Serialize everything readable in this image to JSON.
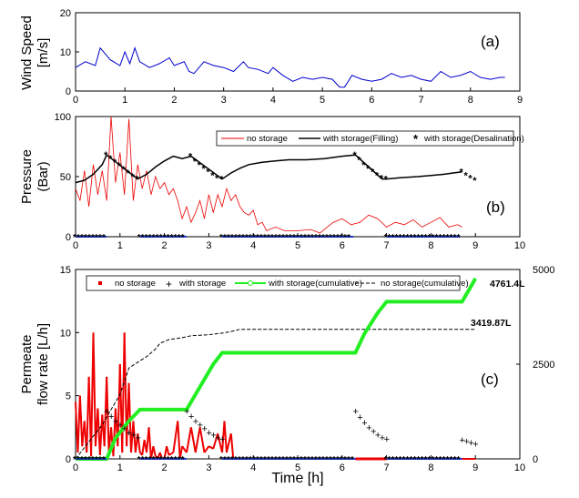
{
  "figure": {
    "xlabel": "Time [h]",
    "colors": {
      "wind": "#0000cc",
      "no_storage": "#ee0000",
      "filling": "#000000",
      "desal_marker": "#1f3ad6",
      "cumulative_storage": "#22ee22",
      "cumulative_no_storage": "#000000"
    }
  },
  "chart_data": [
    {
      "type": "line",
      "panel_label": "(a)",
      "ylabel_lines": [
        "Wind Speed",
        "[m/s]"
      ],
      "xlim": [
        0,
        9
      ],
      "ylim": [
        0,
        20
      ],
      "x_ticks": [
        "0",
        "1",
        "2",
        "3",
        "4",
        "5",
        "6",
        "7",
        "8",
        "9"
      ],
      "y_ticks": [
        "0",
        "10",
        "20"
      ],
      "series": [
        {
          "x": [
            0,
            0.2,
            0.4,
            0.5,
            0.7,
            0.9,
            1.0,
            1.1,
            1.2,
            1.3,
            1.5,
            1.7,
            1.9,
            2.0,
            2.2,
            2.3,
            2.4,
            2.6,
            2.8,
            3.0,
            3.2,
            3.4,
            3.5,
            3.7,
            3.9,
            4.0,
            4.2,
            4.4,
            4.6,
            4.8,
            5.0,
            5.2,
            5.35,
            5.45,
            5.6,
            5.8,
            6.0,
            6.2,
            6.4,
            6.6,
            6.8,
            7.0,
            7.2,
            7.4,
            7.6,
            7.8,
            8.0,
            8.2,
            8.4,
            8.6,
            8.7
          ],
          "values": [
            6.0,
            7.5,
            6.5,
            11.0,
            8.0,
            6.5,
            10.0,
            7.0,
            11.0,
            7.5,
            6.0,
            7.0,
            8.5,
            6.5,
            7.5,
            5.0,
            4.5,
            7.5,
            6.5,
            6.0,
            5.0,
            7.5,
            6.0,
            5.5,
            4.5,
            6.0,
            4.0,
            2.5,
            3.5,
            3.0,
            3.5,
            3.0,
            1.0,
            1.0,
            4.0,
            3.0,
            2.5,
            3.0,
            4.5,
            3.5,
            4.0,
            3.0,
            2.5,
            5.0,
            3.5,
            4.0,
            5.0,
            3.5,
            3.0,
            3.5,
            3.5
          ]
        }
      ]
    },
    {
      "type": "line",
      "panel_label": "(b)",
      "ylabel_lines": [
        "Pressure",
        "(Bar)"
      ],
      "xlim": [
        0,
        10
      ],
      "ylim": [
        0,
        100
      ],
      "x_ticks": [
        "0",
        "1",
        "2",
        "3",
        "4",
        "5",
        "6",
        "7",
        "8",
        "9",
        "10"
      ],
      "y_ticks": [
        "0",
        "50",
        "100"
      ],
      "legend": [
        "no storage",
        "with storage(Filling)",
        "with storage(Desalination)"
      ],
      "series": [
        {
          "name": "no storage",
          "x": [
            0.0,
            0.1,
            0.2,
            0.3,
            0.4,
            0.5,
            0.6,
            0.7,
            0.8,
            0.9,
            1.0,
            1.1,
            1.2,
            1.3,
            1.4,
            1.5,
            1.6,
            1.7,
            1.8,
            1.9,
            2.0,
            2.1,
            2.2,
            2.3,
            2.4,
            2.5,
            2.6,
            2.7,
            2.8,
            2.9,
            3.0,
            3.1,
            3.2,
            3.3,
            3.4,
            3.5,
            3.6,
            3.7,
            3.8,
            3.9,
            4.0,
            4.1,
            4.2,
            4.3,
            4.5,
            4.7,
            5.0,
            5.3,
            5.5,
            5.8,
            6.0,
            6.2,
            6.4,
            6.6,
            6.8,
            7.0,
            7.2,
            7.4,
            7.6,
            7.8,
            8.0,
            8.2,
            8.4,
            8.6,
            8.7
          ],
          "values": [
            40,
            30,
            55,
            25,
            60,
            35,
            55,
            30,
            100,
            45,
            70,
            35,
            98,
            30,
            60,
            40,
            55,
            35,
            50,
            40,
            45,
            35,
            40,
            30,
            15,
            25,
            12,
            20,
            30,
            15,
            35,
            20,
            35,
            25,
            40,
            30,
            35,
            25,
            20,
            18,
            22,
            10,
            12,
            5,
            8,
            5,
            5,
            6,
            3,
            12,
            15,
            10,
            12,
            18,
            15,
            8,
            12,
            10,
            14,
            8,
            12,
            16,
            8,
            10,
            8
          ]
        },
        {
          "name": "with storage(Filling)",
          "x": [
            0.0,
            0.2,
            0.4,
            0.6,
            0.7,
            1.4,
            1.6,
            1.8,
            2.0,
            2.2,
            2.4,
            2.6,
            3.3,
            3.5,
            3.7,
            3.9,
            4.2,
            4.5,
            4.8,
            5.2,
            5.6,
            6.0,
            6.3,
            6.9,
            7.0,
            7.3,
            7.7,
            8.0,
            8.3,
            8.5,
            8.7
          ],
          "values": [
            45,
            47,
            52,
            60,
            68,
            48,
            52,
            58,
            63,
            67,
            65,
            67,
            48,
            53,
            57,
            60,
            62,
            63,
            64,
            64,
            65,
            67,
            68,
            48,
            48,
            49,
            50,
            51,
            52,
            53,
            54
          ]
        },
        {
          "name": "with storage(Desalination)",
          "x": [
            0.7,
            0.8,
            0.9,
            1.0,
            1.1,
            1.2,
            1.3,
            1.4,
            2.6,
            2.7,
            2.8,
            2.9,
            3.0,
            3.1,
            3.2,
            3.3,
            6.3,
            6.4,
            6.5,
            6.6,
            6.7,
            6.8,
            6.9,
            7.0,
            8.7,
            8.8,
            8.9,
            9.0
          ],
          "values": [
            68,
            65,
            62,
            59,
            56,
            53,
            50,
            48,
            67,
            63,
            60,
            57,
            54,
            51,
            49,
            48,
            68,
            64,
            60,
            57,
            54,
            51,
            49,
            48,
            54,
            51,
            49,
            47
          ]
        }
      ],
      "zero_markers_storage": [
        [
          0.0,
          0.7
        ],
        [
          1.45,
          2.5
        ],
        [
          3.3,
          6.25
        ],
        [
          7.0,
          8.65
        ]
      ]
    },
    {
      "type": "line",
      "panel_label": "(c)",
      "ylabel_lines": [
        "Permeate",
        "flow rate [L/h]"
      ],
      "xlim": [
        0,
        10
      ],
      "ylim": [
        0,
        15
      ],
      "ylim_right": [
        0,
        5000
      ],
      "x_ticks": [
        "0",
        "1",
        "2",
        "3",
        "4",
        "5",
        "6",
        "7",
        "8",
        "9",
        "10"
      ],
      "y_ticks": [
        "0",
        "5",
        "10",
        "15"
      ],
      "y_ticks_right": [
        "0",
        "2500",
        "5000"
      ],
      "legend": [
        "no storage",
        "with storage",
        "with storage(cumulative)",
        "no storage(cumulative)"
      ],
      "annotations": [
        "4761.4L",
        "3419.87L"
      ],
      "series": [
        {
          "name": "no storage",
          "x": [
            0.0,
            0.05,
            0.1,
            0.15,
            0.2,
            0.25,
            0.3,
            0.35,
            0.4,
            0.45,
            0.5,
            0.55,
            0.6,
            0.65,
            0.7,
            0.75,
            0.8,
            0.85,
            0.9,
            0.95,
            1.0,
            1.05,
            1.1,
            1.15,
            1.2,
            1.25,
            1.3,
            1.35,
            1.4,
            1.45,
            1.5,
            1.55,
            1.6,
            1.65,
            1.7,
            1.75,
            1.8,
            1.85,
            1.9,
            1.95,
            2.0,
            2.05,
            2.1,
            2.2,
            2.3,
            2.35,
            2.4,
            2.5,
            2.6,
            2.7,
            2.8,
            2.9,
            3.0,
            3.1,
            3.2,
            3.3,
            3.35,
            3.4,
            3.5,
            3.55,
            3.6,
            3.7,
            4.0,
            5.0,
            6.0,
            6.3,
            7.0,
            8.0,
            9.0
          ],
          "values": [
            4.5,
            0.5,
            5.0,
            1.0,
            3.0,
            0.5,
            6.5,
            0.2,
            10.0,
            1.0,
            4.0,
            0.3,
            3.5,
            1.0,
            6.5,
            0.5,
            2.5,
            0.2,
            4.0,
            1.0,
            7.5,
            0.5,
            10.0,
            1.0,
            6.0,
            0.5,
            3.0,
            0.5,
            2.0,
            0.5,
            0.3,
            1.5,
            0.5,
            2.5,
            0.0,
            1.0,
            0.2,
            0.0,
            0.5,
            0.0,
            0.0,
            1.0,
            0.3,
            0.5,
            3.0,
            0.0,
            1.0,
            0.5,
            2.5,
            0.5,
            2.5,
            0.5,
            1.0,
            0.8,
            2.0,
            0.5,
            3.0,
            0.5,
            2.0,
            0.0,
            0.0,
            0.0,
            0.0,
            0.0,
            0.0,
            0.0,
            0.0,
            0.0,
            0.0
          ]
        },
        {
          "name": "with storage",
          "x": [
            0.7,
            0.8,
            0.9,
            1.0,
            1.1,
            1.2,
            1.3,
            1.4,
            2.5,
            2.6,
            2.7,
            2.8,
            2.9,
            3.0,
            3.1,
            3.2,
            3.3,
            6.3,
            6.4,
            6.5,
            6.6,
            6.7,
            6.8,
            6.9,
            7.0,
            8.7,
            8.8,
            8.9,
            9.0
          ],
          "values": [
            3.8,
            3.4,
            3.0,
            2.7,
            2.4,
            2.1,
            1.9,
            1.7,
            3.8,
            3.4,
            3.0,
            2.7,
            2.4,
            2.1,
            1.9,
            1.7,
            1.6,
            3.8,
            3.3,
            2.9,
            2.5,
            2.2,
            1.9,
            1.7,
            1.6,
            1.5,
            1.4,
            1.3,
            1.2
          ]
        },
        {
          "name": "with storage(cumulative)",
          "x": [
            0.0,
            0.7,
            0.9,
            1.2,
            1.45,
            2.5,
            2.8,
            3.1,
            3.3,
            6.3,
            6.5,
            6.8,
            7.0,
            8.7,
            8.8,
            8.9,
            9.0
          ],
          "values": [
            0,
            0,
            550,
            1000,
            1300,
            1300,
            1900,
            2500,
            2800,
            2800,
            3300,
            3850,
            4150,
            4150,
            4350,
            4550,
            4761.4
          ]
        },
        {
          "name": "no storage(cumulative)",
          "x": [
            0.0,
            0.2,
            0.4,
            0.6,
            0.8,
            1.0,
            1.2,
            1.4,
            1.6,
            1.8,
            1.9,
            2.1,
            2.4,
            2.6,
            3.0,
            3.3,
            3.5,
            3.7,
            4.0,
            5.0,
            6.0,
            7.0,
            8.0,
            9.0
          ],
          "values": [
            0,
            300,
            600,
            900,
            1300,
            1700,
            2400,
            2550,
            2700,
            2900,
            3050,
            3150,
            3200,
            3250,
            3280,
            3320,
            3360,
            3420,
            3420,
            3420,
            3420,
            3420,
            3420,
            3420
          ]
        }
      ],
      "zero_markers_storage": [
        [
          0.0,
          0.7
        ],
        [
          1.45,
          2.5
        ],
        [
          3.3,
          6.3
        ],
        [
          7.0,
          8.7
        ]
      ],
      "zero_segments_no_storage": [
        [
          6.3,
          7.0
        ]
      ]
    }
  ]
}
